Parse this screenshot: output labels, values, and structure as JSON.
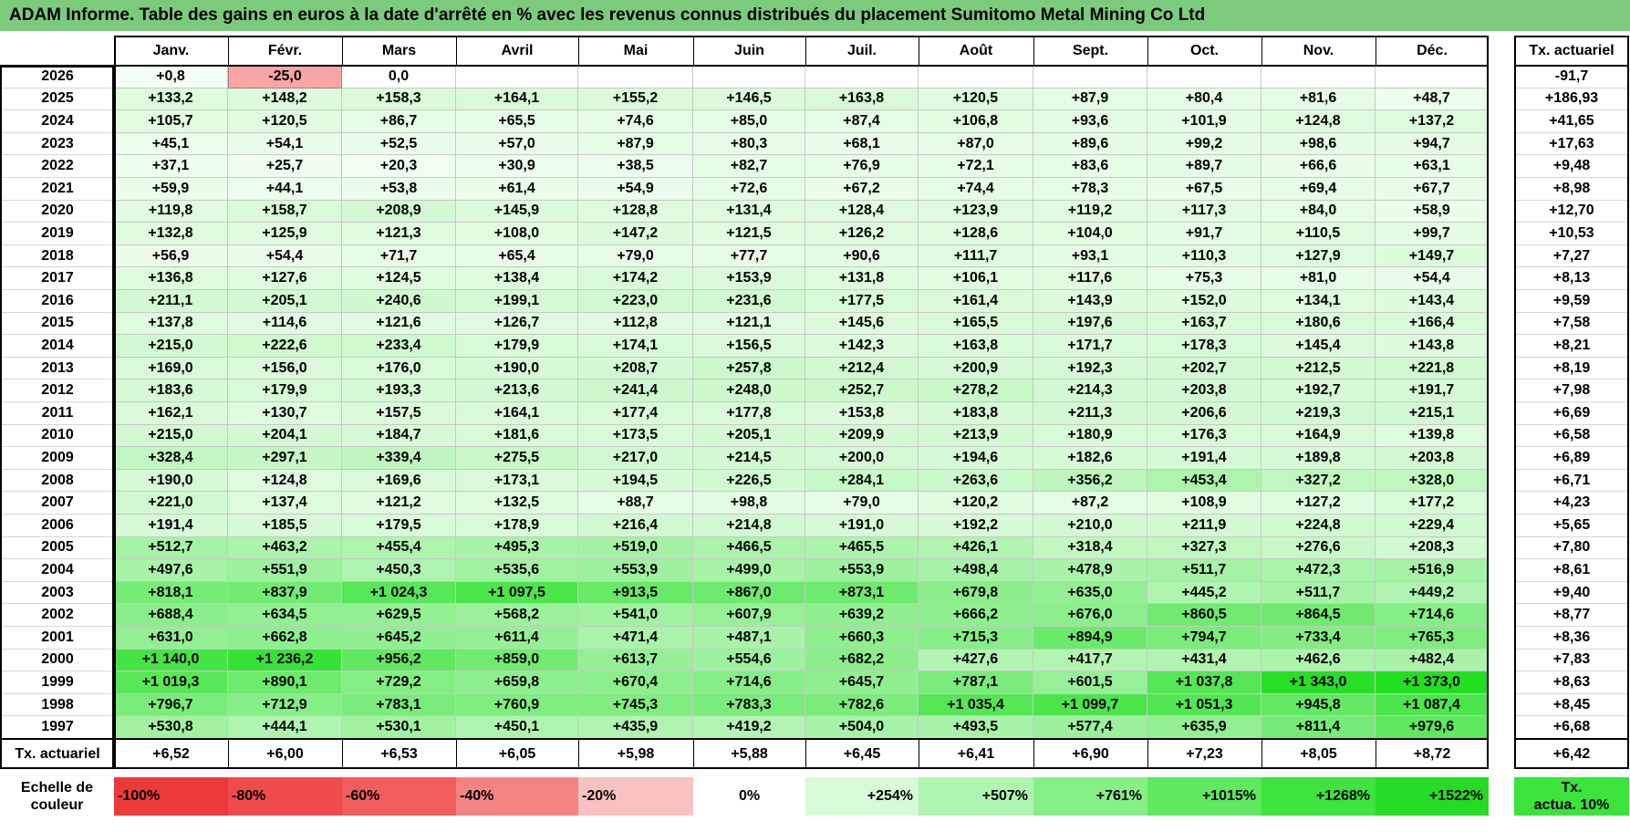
{
  "title": "ADAM Informe. Table des gains en euros à la date d'arrêté en % avec les revenus connus distribués du placement Sumitomo Metal Mining Co Ltd",
  "months": [
    "Janv.",
    "Févr.",
    "Mars",
    "Avril",
    "Mai",
    "Juin",
    "Juil.",
    "Août",
    "Sept.",
    "Oct.",
    "Nov.",
    "Déc."
  ],
  "tx_header": "Tx. actuariel",
  "rows": [
    {
      "year": "2026",
      "values": [
        "+0,8",
        "-25,0",
        "0,0",
        "",
        "",
        "",
        "",
        "",
        "",
        "",
        "",
        ""
      ],
      "tx": "-91,7"
    },
    {
      "year": "2025",
      "values": [
        "+133,2",
        "+148,2",
        "+158,3",
        "+164,1",
        "+155,2",
        "+146,5",
        "+163,8",
        "+120,5",
        "+87,9",
        "+80,4",
        "+81,6",
        "+48,7"
      ],
      "tx": "+186,93"
    },
    {
      "year": "2024",
      "values": [
        "+105,7",
        "+120,5",
        "+86,7",
        "+65,5",
        "+74,6",
        "+85,0",
        "+87,4",
        "+106,8",
        "+93,6",
        "+101,9",
        "+124,8",
        "+137,2"
      ],
      "tx": "+41,65"
    },
    {
      "year": "2023",
      "values": [
        "+45,1",
        "+54,1",
        "+52,5",
        "+57,0",
        "+87,9",
        "+80,3",
        "+68,1",
        "+87,0",
        "+89,6",
        "+99,2",
        "+98,6",
        "+94,7"
      ],
      "tx": "+17,63"
    },
    {
      "year": "2022",
      "values": [
        "+37,1",
        "+25,7",
        "+20,3",
        "+30,9",
        "+38,5",
        "+82,7",
        "+76,9",
        "+72,1",
        "+83,6",
        "+89,7",
        "+66,6",
        "+63,1"
      ],
      "tx": "+9,48"
    },
    {
      "year": "2021",
      "values": [
        "+59,9",
        "+44,1",
        "+53,8",
        "+61,4",
        "+54,9",
        "+72,6",
        "+67,2",
        "+74,4",
        "+78,3",
        "+67,5",
        "+69,4",
        "+67,7"
      ],
      "tx": "+8,98"
    },
    {
      "year": "2020",
      "values": [
        "+119,8",
        "+158,7",
        "+208,9",
        "+145,9",
        "+128,8",
        "+131,4",
        "+128,4",
        "+123,9",
        "+119,2",
        "+117,3",
        "+84,0",
        "+58,9"
      ],
      "tx": "+12,70"
    },
    {
      "year": "2019",
      "values": [
        "+132,8",
        "+125,9",
        "+121,3",
        "+108,0",
        "+147,2",
        "+121,5",
        "+126,2",
        "+128,6",
        "+104,0",
        "+91,7",
        "+110,5",
        "+99,7"
      ],
      "tx": "+10,53"
    },
    {
      "year": "2018",
      "values": [
        "+56,9",
        "+54,4",
        "+71,7",
        "+65,4",
        "+79,0",
        "+77,7",
        "+90,6",
        "+111,7",
        "+93,1",
        "+110,3",
        "+127,9",
        "+149,7"
      ],
      "tx": "+7,27"
    },
    {
      "year": "2017",
      "values": [
        "+136,8",
        "+127,6",
        "+124,5",
        "+138,4",
        "+174,2",
        "+153,9",
        "+131,8",
        "+106,1",
        "+117,6",
        "+75,3",
        "+81,0",
        "+54,4"
      ],
      "tx": "+8,13"
    },
    {
      "year": "2016",
      "values": [
        "+211,1",
        "+205,1",
        "+240,6",
        "+199,1",
        "+223,0",
        "+231,6",
        "+177,5",
        "+161,4",
        "+143,9",
        "+152,0",
        "+134,1",
        "+143,4"
      ],
      "tx": "+9,59"
    },
    {
      "year": "2015",
      "values": [
        "+137,8",
        "+114,6",
        "+121,6",
        "+126,7",
        "+112,8",
        "+121,1",
        "+145,6",
        "+165,5",
        "+197,6",
        "+163,7",
        "+180,6",
        "+166,4"
      ],
      "tx": "+7,58"
    },
    {
      "year": "2014",
      "values": [
        "+215,0",
        "+222,6",
        "+233,4",
        "+179,9",
        "+174,1",
        "+156,5",
        "+142,3",
        "+163,8",
        "+171,7",
        "+178,3",
        "+145,4",
        "+143,8"
      ],
      "tx": "+8,21"
    },
    {
      "year": "2013",
      "values": [
        "+169,0",
        "+156,0",
        "+176,0",
        "+190,0",
        "+208,7",
        "+257,8",
        "+212,4",
        "+200,9",
        "+192,3",
        "+202,7",
        "+212,5",
        "+221,8"
      ],
      "tx": "+8,19"
    },
    {
      "year": "2012",
      "values": [
        "+183,6",
        "+179,9",
        "+193,3",
        "+213,6",
        "+241,4",
        "+248,0",
        "+252,7",
        "+278,2",
        "+214,3",
        "+203,8",
        "+192,7",
        "+191,7"
      ],
      "tx": "+7,98"
    },
    {
      "year": "2011",
      "values": [
        "+162,1",
        "+130,7",
        "+157,5",
        "+164,1",
        "+177,4",
        "+177,8",
        "+153,8",
        "+183,8",
        "+211,3",
        "+206,6",
        "+219,3",
        "+215,1"
      ],
      "tx": "+6,69"
    },
    {
      "year": "2010",
      "values": [
        "+215,0",
        "+204,1",
        "+184,7",
        "+181,6",
        "+173,5",
        "+205,1",
        "+209,9",
        "+213,9",
        "+180,9",
        "+176,3",
        "+164,9",
        "+139,8"
      ],
      "tx": "+6,58"
    },
    {
      "year": "2009",
      "values": [
        "+328,4",
        "+297,1",
        "+339,4",
        "+275,5",
        "+217,0",
        "+214,5",
        "+200,0",
        "+194,6",
        "+182,6",
        "+191,4",
        "+189,8",
        "+203,8"
      ],
      "tx": "+6,89"
    },
    {
      "year": "2008",
      "values": [
        "+190,0",
        "+124,8",
        "+169,6",
        "+173,1",
        "+194,5",
        "+226,5",
        "+284,1",
        "+263,6",
        "+356,2",
        "+453,4",
        "+327,2",
        "+328,0"
      ],
      "tx": "+6,71"
    },
    {
      "year": "2007",
      "values": [
        "+221,0",
        "+137,4",
        "+121,2",
        "+132,5",
        "+88,7",
        "+98,8",
        "+79,0",
        "+120,2",
        "+87,2",
        "+108,9",
        "+127,2",
        "+177,2"
      ],
      "tx": "+4,23"
    },
    {
      "year": "2006",
      "values": [
        "+191,4",
        "+185,5",
        "+179,5",
        "+178,9",
        "+216,4",
        "+214,8",
        "+191,0",
        "+192,2",
        "+210,0",
        "+211,9",
        "+224,8",
        "+229,4"
      ],
      "tx": "+5,65"
    },
    {
      "year": "2005",
      "values": [
        "+512,7",
        "+463,2",
        "+455,4",
        "+495,3",
        "+519,0",
        "+466,5",
        "+465,5",
        "+426,1",
        "+318,4",
        "+327,3",
        "+276,6",
        "+208,3"
      ],
      "tx": "+7,80"
    },
    {
      "year": "2004",
      "values": [
        "+497,6",
        "+551,9",
        "+450,3",
        "+535,6",
        "+553,9",
        "+499,0",
        "+553,9",
        "+498,4",
        "+478,9",
        "+511,7",
        "+472,3",
        "+516,9"
      ],
      "tx": "+8,61"
    },
    {
      "year": "2003",
      "values": [
        "+818,1",
        "+837,9",
        "+1 024,3",
        "+1 097,5",
        "+913,5",
        "+867,0",
        "+873,1",
        "+679,8",
        "+635,0",
        "+445,2",
        "+511,7",
        "+449,2"
      ],
      "tx": "+9,40"
    },
    {
      "year": "2002",
      "values": [
        "+688,4",
        "+634,5",
        "+629,5",
        "+568,2",
        "+541,0",
        "+607,9",
        "+639,2",
        "+666,2",
        "+676,0",
        "+860,5",
        "+864,5",
        "+714,6"
      ],
      "tx": "+8,77"
    },
    {
      "year": "2001",
      "values": [
        "+631,0",
        "+662,8",
        "+645,2",
        "+611,4",
        "+471,4",
        "+487,1",
        "+660,3",
        "+715,3",
        "+894,9",
        "+794,7",
        "+733,4",
        "+765,3"
      ],
      "tx": "+8,36"
    },
    {
      "year": "2000",
      "values": [
        "+1 140,0",
        "+1 236,2",
        "+956,2",
        "+859,0",
        "+613,7",
        "+554,6",
        "+682,2",
        "+427,6",
        "+417,7",
        "+431,4",
        "+462,6",
        "+482,4"
      ],
      "tx": "+7,83"
    },
    {
      "year": "1999",
      "values": [
        "+1 019,3",
        "+890,1",
        "+729,2",
        "+659,8",
        "+670,4",
        "+714,6",
        "+645,7",
        "+787,1",
        "+601,5",
        "+1 037,8",
        "+1 343,0",
        "+1 373,0"
      ],
      "tx": "+8,63"
    },
    {
      "year": "1998",
      "values": [
        "+796,7",
        "+712,9",
        "+783,1",
        "+760,9",
        "+745,3",
        "+783,3",
        "+782,6",
        "+1 035,4",
        "+1 099,7",
        "+1 051,3",
        "+945,8",
        "+1 087,4"
      ],
      "tx": "+8,45"
    },
    {
      "year": "1997",
      "values": [
        "+530,8",
        "+444,1",
        "+530,1",
        "+450,1",
        "+435,9",
        "+419,2",
        "+504,0",
        "+493,5",
        "+577,4",
        "+635,9",
        "+811,4",
        "+979,6"
      ],
      "tx": "+6,68"
    }
  ],
  "footer": {
    "label": "Tx. actuariel",
    "values": [
      "+6,52",
      "+6,00",
      "+6,53",
      "+6,05",
      "+5,98",
      "+5,88",
      "+6,45",
      "+6,41",
      "+6,90",
      "+7,23",
      "+8,05",
      "+8,72"
    ],
    "tx": "+6,42"
  },
  "scale": {
    "label_line1": "Echelle de",
    "label_line2": "couleur",
    "items": [
      {
        "label": "-100%",
        "color": "#ec3a3a",
        "align": "left"
      },
      {
        "label": "-80%",
        "color": "#ef4b4b",
        "align": "left"
      },
      {
        "label": "-60%",
        "color": "#f25c5c",
        "align": "left"
      },
      {
        "label": "-40%",
        "color": "#f48484",
        "align": "left"
      },
      {
        "label": "-20%",
        "color": "#f9c2c2",
        "align": "left"
      },
      {
        "label": "0%",
        "color": "#ffffff",
        "align": "center"
      },
      {
        "label": "+254%",
        "color": "#d7fbd7",
        "align": "right"
      },
      {
        "label": "+507%",
        "color": "#aff5af",
        "align": "right"
      },
      {
        "label": "+761%",
        "color": "#86ef86",
        "align": "right"
      },
      {
        "label": "+1015%",
        "color": "#5ee95e",
        "align": "right"
      },
      {
        "label": "+1268%",
        "color": "#3ee33e",
        "align": "right"
      },
      {
        "label": "+1522%",
        "color": "#25dc25",
        "align": "right"
      }
    ],
    "tx_label_line1": "Tx.",
    "tx_label_line2": "actua. 10%",
    "tx_color": "#3be33b"
  },
  "colors": {
    "title_bg": "#7ccb7c",
    "negative_cell": "#f9a5a5"
  }
}
